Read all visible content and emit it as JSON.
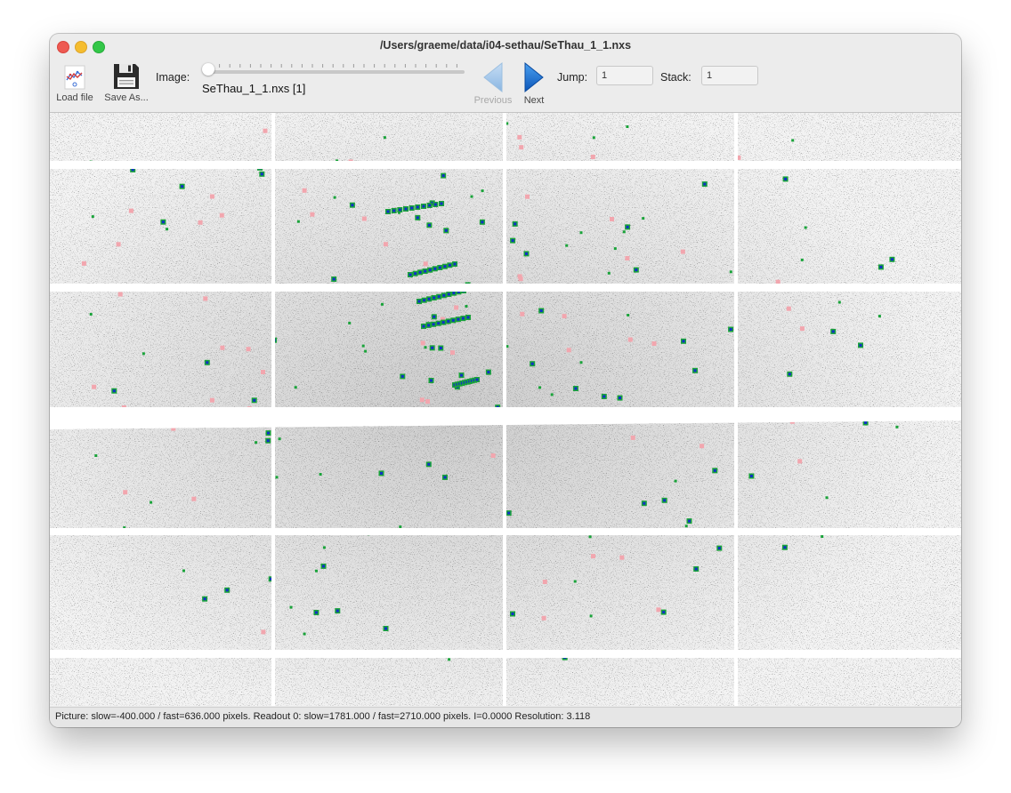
{
  "window": {
    "title": "/Users/graeme/data/i04-sethau/SeThau_1_1.nxs"
  },
  "toolbar": {
    "load_label": "Load file",
    "load_icon": "load-file-icon",
    "save_label": "Save As...",
    "save_icon": "floppy-disk-icon",
    "image_label": "Image:",
    "image_slider_value": 1,
    "file_label": "SeThau_1_1.nxs [1]",
    "previous_label": "Previous",
    "previous_icon": "arrow-left-icon",
    "next_label": "Next",
    "next_icon": "arrow-right-icon",
    "jump_label": "Jump:",
    "jump_value": "1",
    "stack_label": "Stack:",
    "stack_value": "1"
  },
  "status": {
    "text": "Picture:  slow=-400.000 / fast=636.000 pixels. Readout 0: slow=1781.000 / fast=2710.000 pixels. I=0.0000 Resolution: 3.118"
  },
  "colors": {
    "spot_blue": "#1030c8",
    "spot_green": "#1aa33a",
    "spot_pink": "#f2a6ae",
    "arrow_blue": "#1a6fd4",
    "arrow_disabled": "#9cc4e8"
  }
}
